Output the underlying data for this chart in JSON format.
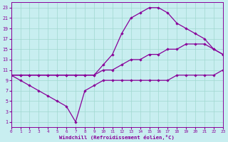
{
  "xlabel": "Windchill (Refroidissement éolien,°C)",
  "xlim": [
    0,
    23
  ],
  "ylim": [
    0,
    24
  ],
  "xticks": [
    0,
    1,
    2,
    3,
    4,
    5,
    6,
    7,
    8,
    9,
    10,
    11,
    12,
    13,
    14,
    15,
    16,
    17,
    18,
    19,
    20,
    21,
    22,
    23
  ],
  "yticks": [
    1,
    3,
    5,
    7,
    9,
    11,
    13,
    15,
    17,
    19,
    21,
    23
  ],
  "bg_color": "#c8eef0",
  "grid_color": "#a0d8d0",
  "line_color": "#880099",
  "curve_top_x": [
    0,
    1,
    2,
    3,
    4,
    5,
    6,
    7,
    8,
    9,
    10,
    11,
    12,
    13,
    14,
    15,
    16,
    17,
    18,
    19,
    20,
    21,
    22,
    23
  ],
  "curve_top_y": [
    10,
    10,
    10,
    10,
    10,
    10,
    10,
    10,
    10,
    10,
    12,
    14,
    18,
    21,
    22,
    23,
    23,
    22,
    20,
    19,
    18,
    17,
    15,
    14
  ],
  "curve_mid_x": [
    0,
    1,
    2,
    3,
    4,
    5,
    6,
    7,
    8,
    9,
    10,
    11,
    12,
    13,
    14,
    15,
    16,
    17,
    18,
    19,
    20,
    21,
    22,
    23
  ],
  "curve_mid_y": [
    10,
    10,
    10,
    10,
    10,
    10,
    10,
    10,
    10,
    10,
    11,
    11,
    12,
    13,
    13,
    14,
    14,
    15,
    15,
    16,
    16,
    16,
    15,
    14
  ],
  "curve_bot_x": [
    0,
    1,
    2,
    3,
    4,
    5,
    6,
    7,
    8,
    9,
    10,
    11,
    12,
    13,
    14,
    15,
    16,
    17,
    18,
    19,
    20,
    21,
    22,
    23
  ],
  "curve_bot_y": [
    10,
    9,
    8,
    7,
    6,
    5,
    4,
    1,
    7,
    8,
    9,
    9,
    9,
    9,
    9,
    9,
    9,
    9,
    10,
    10,
    10,
    10,
    10,
    11
  ]
}
